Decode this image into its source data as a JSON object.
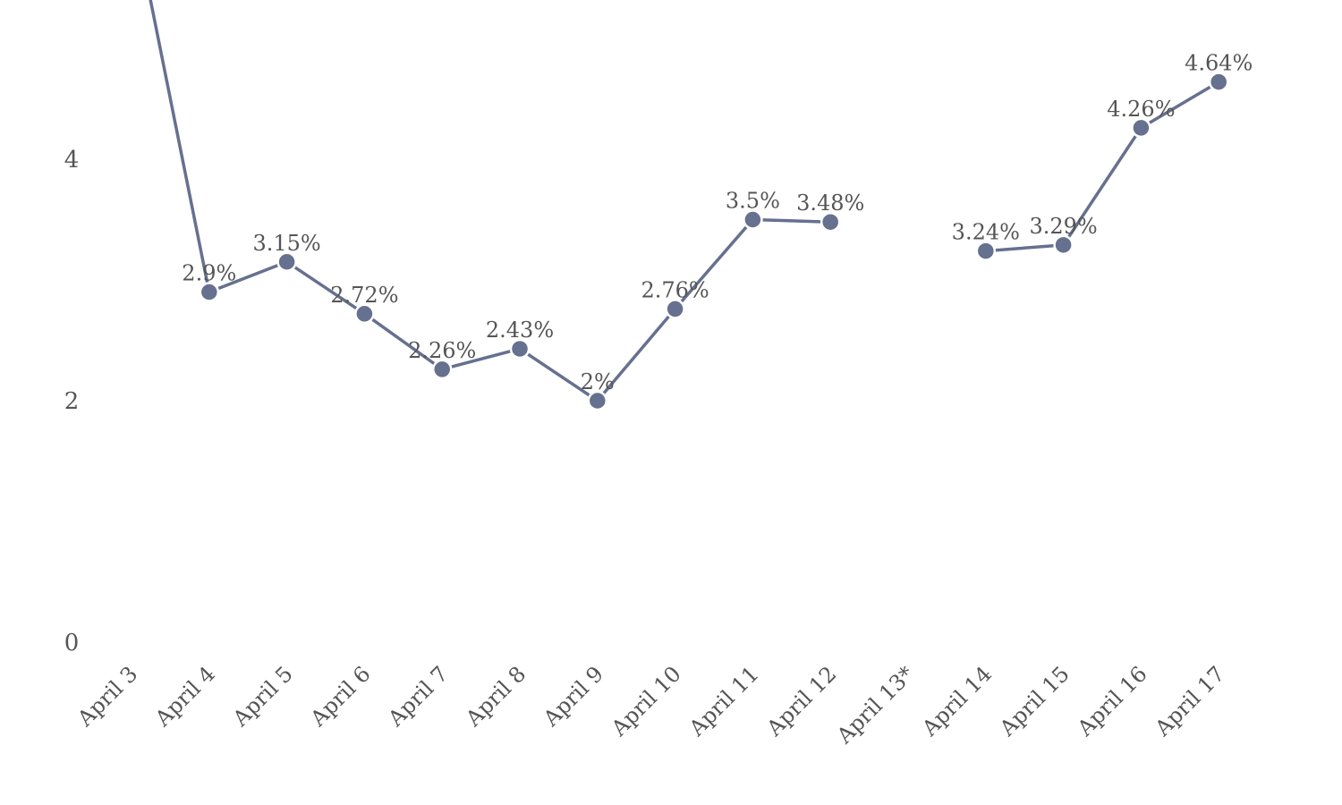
{
  "chart_data": {
    "type": "line",
    "categories": [
      "April 3",
      "April 4",
      "April 5",
      "April 6",
      "April 7",
      "April 8",
      "April 9",
      "April 10",
      "April 11",
      "April 12",
      "April 13*",
      "April 14",
      "April 15",
      "April 16",
      "April 17"
    ],
    "series": [
      {
        "values": [
          6.1,
          2.9,
          3.15,
          2.72,
          2.26,
          2.43,
          2,
          2.76,
          3.5,
          3.48,
          null,
          3.24,
          3.29,
          4.26,
          4.64
        ],
        "data_labels": [
          "",
          "2.9%",
          "3.15%",
          "2.72%",
          "2.26%",
          "2.43%",
          "2%",
          "2.76%",
          "3.5%",
          "3.48%",
          "",
          "3.24%",
          "3.29%",
          "4.26%",
          "4.64%"
        ]
      }
    ],
    "title": "",
    "xlabel": "",
    "ylabel": "",
    "yticks": [
      "0",
      "2",
      "4"
    ],
    "ylim": [
      0,
      5.4
    ],
    "grid": false,
    "legend": "none",
    "colors": {
      "line": "#66708f",
      "marker": "#66708f",
      "text": "#555555"
    }
  }
}
